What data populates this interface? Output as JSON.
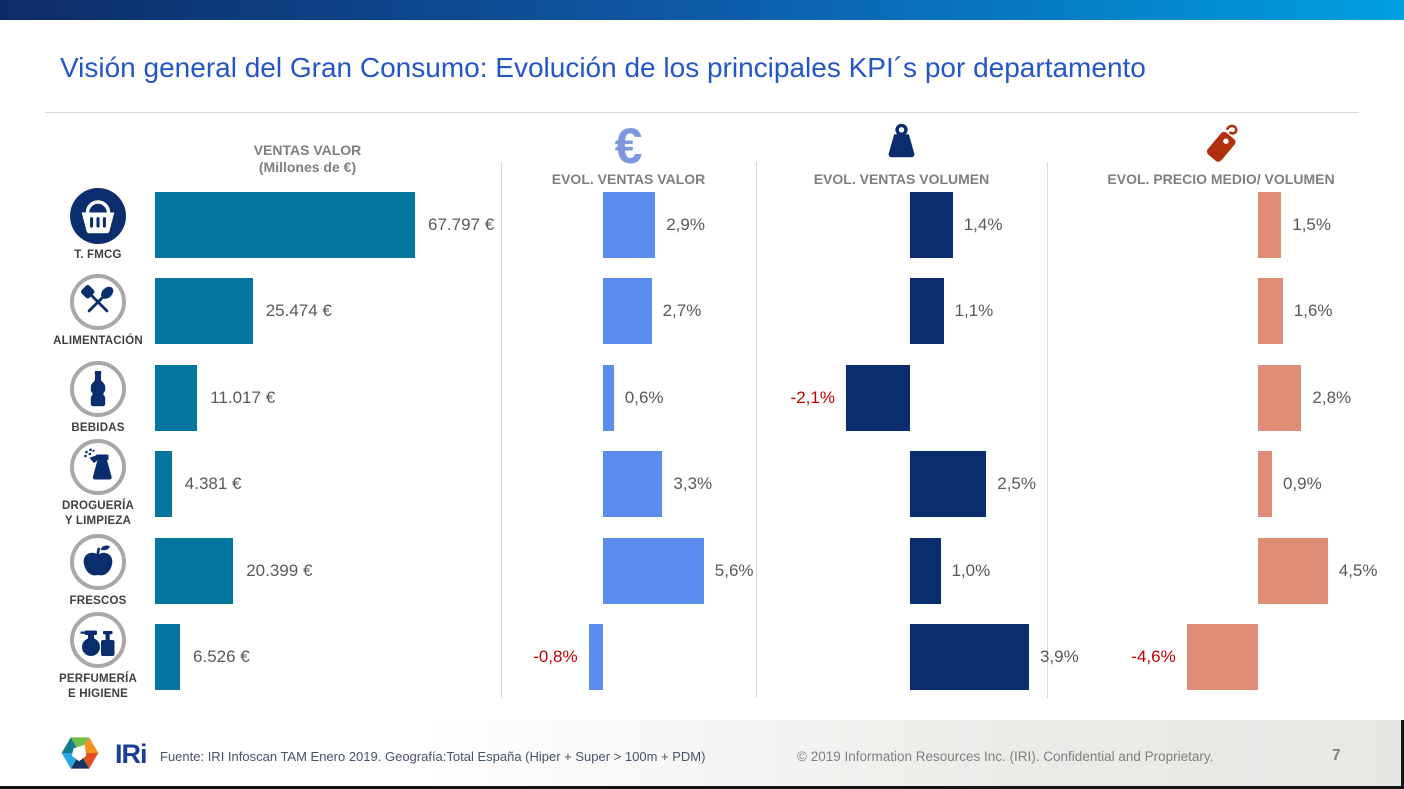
{
  "title": "Visión general del Gran Consumo: Evolución de los principales KPI´s por departamento",
  "headers": [
    {
      "line1": "VENTAS VALOR",
      "line2": "(Millones de €)",
      "icon": ""
    },
    {
      "line1": "EVOL. VENTAS VALOR",
      "icon": "euro-icon",
      "glyph": "€"
    },
    {
      "line1": "EVOL. VENTAS VOLUMEN",
      "icon": "weight-icon"
    },
    {
      "line1": "EVOL. PRECIO MEDIO/ VOLUMEN",
      "icon": "price-tag-icon"
    }
  ],
  "chart_data": {
    "type": "bar",
    "orientation": "horizontal",
    "grid": false,
    "legend_position": "none",
    "categories": [
      "T. FMCG",
      "ALIMENTACIÓN",
      "BEBIDAS",
      "DROGUERÍA Y LIMPIEZA",
      "FRESCOS",
      "PERFUMERÍA E HIGIENE"
    ],
    "category_label_lines": [
      [
        "T. FMCG"
      ],
      [
        "ALIMENTACIÓN"
      ],
      [
        "BEBIDAS"
      ],
      [
        "DROGUERÍA",
        "Y LIMPIEZA"
      ],
      [
        "FRESCOS"
      ],
      [
        "PERFUMERÍA",
        "E HIGIENE"
      ]
    ],
    "category_icons": [
      "basket-icon",
      "cutlery-icon",
      "bottle-icon",
      "spray-bottle-icon",
      "apple-icon",
      "perfume-icon"
    ],
    "series": [
      {
        "name": "VENTAS VALOR (Millones de €)",
        "unit": "millones €",
        "color": "#03769e",
        "values": [
          67797,
          25474,
          11017,
          4381,
          20399,
          6526
        ],
        "labels": [
          "67.797 €",
          "25.474 €",
          "11.017 €",
          "4.381 €",
          "20.399 €",
          "6.526 €"
        ]
      },
      {
        "name": "EVOL. VENTAS VALOR",
        "unit": "%",
        "color": "#5b8def",
        "values": [
          2.9,
          2.7,
          0.6,
          3.3,
          5.6,
          -0.8
        ],
        "labels": [
          "2,9%",
          "2,7%",
          "0,6%",
          "3,3%",
          "5,6%",
          "-0,8%"
        ]
      },
      {
        "name": "EVOL. VENTAS VOLUMEN",
        "unit": "%",
        "color": "#0a2d6e",
        "values": [
          1.4,
          1.1,
          -2.1,
          2.5,
          1.0,
          3.9
        ],
        "labels": [
          "1,4%",
          "1,1%",
          "-2,1%",
          "2,5%",
          "1,0%",
          "3,9%"
        ]
      },
      {
        "name": "EVOL. PRECIO MEDIO/ VOLUMEN",
        "unit": "%",
        "color": "#e08d77",
        "values": [
          1.5,
          1.6,
          2.8,
          0.9,
          4.5,
          -4.6
        ],
        "labels": [
          "1,5%",
          "1,6%",
          "2,8%",
          "0,9%",
          "4,5%",
          "-4,6%"
        ]
      }
    ]
  },
  "colors": {
    "top_bar_gradient_start": "#0e2b66",
    "top_bar_gradient_mid": "#0e5aa7",
    "top_bar_gradient_end": "#009fe0",
    "title": "#2456c5",
    "bar_teal": "#03769e",
    "bar_blue": "#5b8def",
    "bar_navy": "#0a2d6e",
    "bar_salmon": "#e08d77",
    "negative_value": "#c00000",
    "tag_red": "#b0300e",
    "euro_blue": "#7d98de"
  },
  "footer": {
    "logo_text": "IRi",
    "source": "Fuente: IRI Infoscan TAM Enero 2019. Geografía:Total España (Hiper + Super > 100m + PDM)",
    "copyright": "© 2019 Information Resources Inc. (IRI). Confidential and Proprietary.",
    "page_number": "7"
  }
}
